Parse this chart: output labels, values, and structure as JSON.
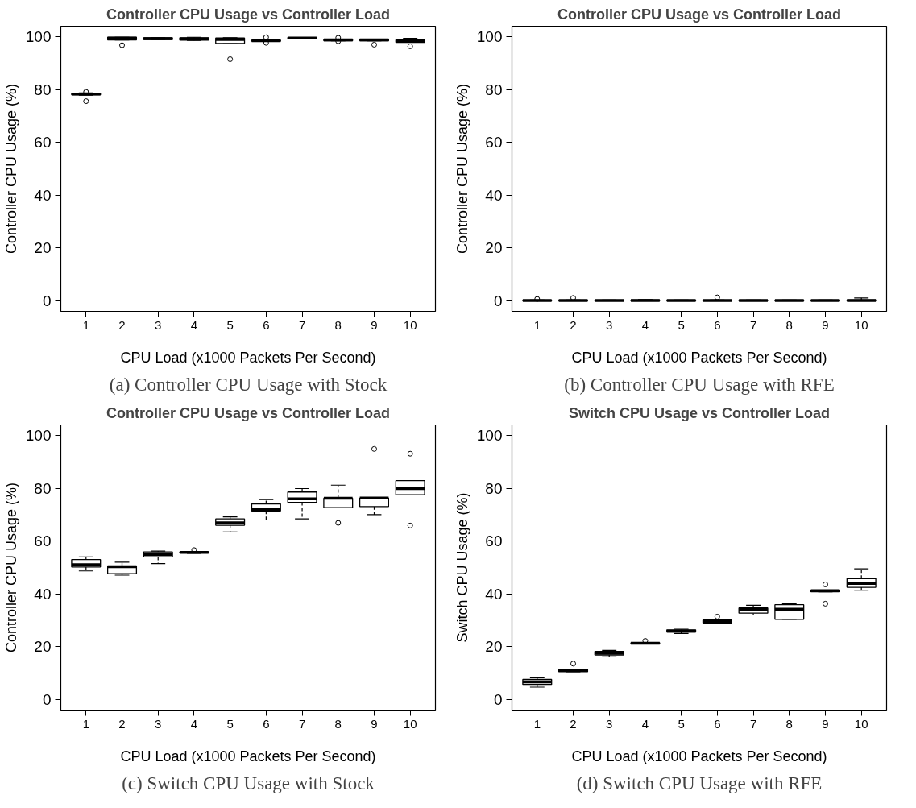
{
  "chart_data": [
    {
      "type": "box",
      "title": "Controller CPU Usage vs Controller Load",
      "xlabel": "CPU Load (x1000 Packets Per Second)",
      "ylabel": "Controller CPU Usage (%)",
      "annotations": [
        "(a) Controller CPU Usage with Stock"
      ],
      "categories": [
        "1",
        "2",
        "3",
        "4",
        "5",
        "6",
        "7",
        "8",
        "9",
        "10"
      ],
      "ylim": [
        -4,
        104
      ],
      "yticks": [
        0,
        20,
        40,
        60,
        80,
        100
      ],
      "grid": false,
      "marker": "circle",
      "line_style": "dashed",
      "boxes": [
        {
          "low": 77.9,
          "q1": 78.0,
          "median": 78.3,
          "q3": 78.6,
          "high": 78.7,
          "outliers": [
            75.6,
            79.1
          ]
        },
        {
          "low": 98.8,
          "q1": 98.8,
          "median": 99.4,
          "q3": 99.8,
          "high": 99.8,
          "outliers": [
            96.8
          ]
        },
        {
          "low": 98.9,
          "q1": 98.9,
          "median": 99.3,
          "q3": 99.6,
          "high": 99.6
        },
        {
          "low": 98.6,
          "q1": 98.7,
          "median": 99.2,
          "q3": 99.6,
          "high": 99.8
        },
        {
          "low": 97.5,
          "q1": 97.5,
          "median": 99.0,
          "q3": 99.5,
          "high": 99.6,
          "outliers": [
            91.5
          ]
        },
        {
          "low": 98.3,
          "q1": 98.3,
          "median": 98.5,
          "q3": 98.7,
          "high": 98.7,
          "outliers": [
            99.8,
            97.7
          ]
        },
        {
          "low": 99.3,
          "q1": 99.3,
          "median": 99.5,
          "q3": 99.7,
          "high": 99.7
        },
        {
          "low": 98.5,
          "q1": 98.5,
          "median": 98.8,
          "q3": 99.0,
          "high": 99.0,
          "outliers": [
            99.6,
            98.3
          ]
        },
        {
          "low": 98.5,
          "q1": 98.5,
          "median": 98.8,
          "q3": 99.1,
          "high": 99.1,
          "outliers": [
            97.0
          ]
        },
        {
          "low": 97.9,
          "q1": 97.9,
          "median": 98.5,
          "q3": 98.8,
          "high": 99.4,
          "outliers": [
            96.4
          ]
        }
      ]
    },
    {
      "type": "box",
      "title": "Controller CPU Usage vs Controller Load",
      "xlabel": "CPU Load (x1000 Packets Per Second)",
      "ylabel": "Controller CPU Usage (%)",
      "annotations": [
        "(b) Controller CPU Usage with RFE"
      ],
      "categories": [
        "1",
        "2",
        "3",
        "4",
        "5",
        "6",
        "7",
        "8",
        "9",
        "10"
      ],
      "ylim": [
        -4,
        104
      ],
      "yticks": [
        0,
        20,
        40,
        60,
        80,
        100
      ],
      "grid": false,
      "marker": "circle",
      "line_style": "dashed",
      "boxes": [
        {
          "low": 0,
          "q1": 0,
          "median": 0.1,
          "q3": 0.2,
          "high": 0.3,
          "outliers": [
            0.7
          ]
        },
        {
          "low": 0,
          "q1": 0,
          "median": 0.1,
          "q3": 0.2,
          "high": 0.3,
          "outliers": [
            1.1
          ]
        },
        {
          "low": 0,
          "q1": 0,
          "median": 0.1,
          "q3": 0.2,
          "high": 0.3
        },
        {
          "low": 0,
          "q1": 0,
          "median": 0.1,
          "q3": 0.3,
          "high": 0.5
        },
        {
          "low": 0,
          "q1": 0,
          "median": 0.1,
          "q3": 0.2,
          "high": 0.3
        },
        {
          "low": 0,
          "q1": 0,
          "median": 0.1,
          "q3": 0.2,
          "high": 0.3,
          "outliers": [
            1.3
          ]
        },
        {
          "low": 0,
          "q1": 0,
          "median": 0.1,
          "q3": 0.2,
          "high": 0.3
        },
        {
          "low": 0,
          "q1": 0,
          "median": 0.1,
          "q3": 0.2,
          "high": 0.3
        },
        {
          "low": 0,
          "q1": 0,
          "median": 0.1,
          "q3": 0.2,
          "high": 0.3
        },
        {
          "low": 0,
          "q1": 0,
          "median": 0.1,
          "q3": 0.3,
          "high": 1.1
        }
      ]
    },
    {
      "type": "box",
      "title": "Controller CPU Usage vs Controller Load",
      "xlabel": "CPU Load (x1000 Packets Per Second)",
      "ylabel": "Controller CPU Usage (%)",
      "annotations": [
        "(c) Switch CPU Usage with Stock"
      ],
      "categories": [
        "1",
        "2",
        "3",
        "4",
        "5",
        "6",
        "7",
        "8",
        "9",
        "10"
      ],
      "ylim": [
        -4,
        104
      ],
      "yticks": [
        0,
        20,
        40,
        60,
        80,
        100
      ],
      "grid": false,
      "marker": "circle",
      "line_style": "dashed",
      "boxes": [
        {
          "low": 48.7,
          "q1": 50.2,
          "median": 51.1,
          "q3": 53.0,
          "high": 54.0
        },
        {
          "low": 47.1,
          "q1": 47.7,
          "median": 50.3,
          "q3": 50.6,
          "high": 52.0
        },
        {
          "low": 51.5,
          "q1": 54.0,
          "median": 54.9,
          "q3": 55.9,
          "high": 56.2
        },
        {
          "low": 55.4,
          "q1": 55.5,
          "median": 55.7,
          "q3": 55.9,
          "high": 56.0,
          "outliers": [
            56.6
          ]
        },
        {
          "low": 63.5,
          "q1": 66.0,
          "median": 66.9,
          "q3": 68.4,
          "high": 69.2
        },
        {
          "low": 68.0,
          "q1": 71.4,
          "median": 71.9,
          "q3": 74.1,
          "high": 75.7
        },
        {
          "low": 68.4,
          "q1": 74.7,
          "median": 76.0,
          "q3": 78.6,
          "high": 79.9
        },
        {
          "low": 72.7,
          "q1": 72.7,
          "median": 76.2,
          "q3": 76.2,
          "high": 81.2,
          "outliers": [
            66.9
          ]
        },
        {
          "low": 70.0,
          "q1": 73.1,
          "median": 76.3,
          "q3": 76.3,
          "high": 76.3,
          "outliers": [
            94.9
          ]
        },
        {
          "low": 77.6,
          "q1": 77.6,
          "median": 79.9,
          "q3": 82.9,
          "high": 82.9,
          "outliers": [
            93.1,
            65.9
          ]
        }
      ]
    },
    {
      "type": "box",
      "title": "Switch CPU Usage vs Controller Load",
      "xlabel": "CPU Load (x1000 Packets Per Second)",
      "ylabel": "Switch CPU Usage (%)",
      "annotations": [
        "(d) Switch CPU Usage with RFE"
      ],
      "categories": [
        "1",
        "2",
        "3",
        "4",
        "5",
        "6",
        "7",
        "8",
        "9",
        "10"
      ],
      "ylim": [
        -4,
        104
      ],
      "yticks": [
        0,
        20,
        40,
        60,
        80,
        100
      ],
      "grid": false,
      "marker": "circle",
      "line_style": "dashed",
      "boxes": [
        {
          "low": 4.7,
          "q1": 5.7,
          "median": 6.7,
          "q3": 7.6,
          "high": 8.2
        },
        {
          "low": 10.5,
          "q1": 10.5,
          "median": 11.0,
          "q3": 11.4,
          "high": 11.4,
          "outliers": [
            13.6
          ]
        },
        {
          "low": 16.2,
          "q1": 16.9,
          "median": 17.6,
          "q3": 18.2,
          "high": 18.6
        },
        {
          "low": 21.1,
          "q1": 21.1,
          "median": 21.3,
          "q3": 21.5,
          "high": 21.5,
          "outliers": [
            22.2
          ]
        },
        {
          "low": 25.0,
          "q1": 25.6,
          "median": 25.9,
          "q3": 26.4,
          "high": 26.6
        },
        {
          "low": 29.0,
          "q1": 29.0,
          "median": 29.6,
          "q3": 30.1,
          "high": 30.1,
          "outliers": [
            31.4
          ]
        },
        {
          "low": 32.0,
          "q1": 32.7,
          "median": 34.1,
          "q3": 34.7,
          "high": 35.7
        },
        {
          "low": 30.4,
          "q1": 30.4,
          "median": 34.2,
          "q3": 35.9,
          "high": 36.3
        },
        {
          "low": 40.8,
          "q1": 40.8,
          "median": 41.2,
          "q3": 41.4,
          "high": 41.4,
          "outliers": [
            43.6,
            36.3
          ]
        },
        {
          "low": 41.4,
          "q1": 42.5,
          "median": 44.0,
          "q3": 45.8,
          "high": 49.5
        }
      ]
    }
  ]
}
